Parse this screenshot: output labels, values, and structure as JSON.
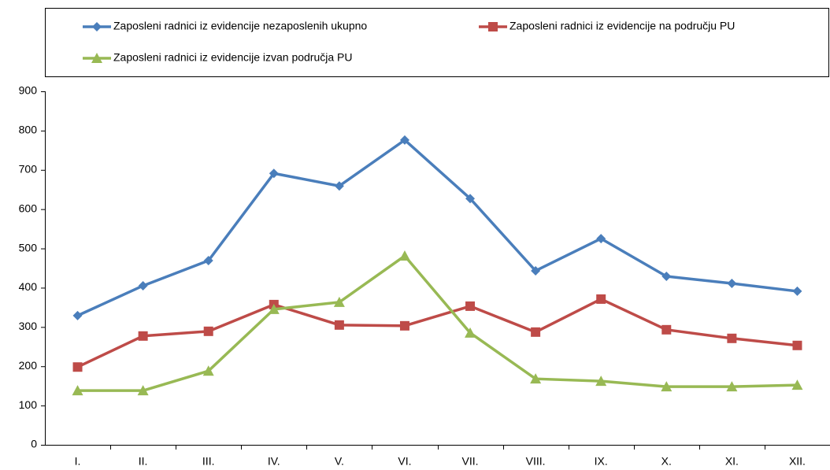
{
  "chart_data": {
    "type": "line",
    "categories": [
      "I.",
      "II.",
      "III.",
      "IV.",
      "V.",
      "VI.",
      "VII.",
      "VIII.",
      "IX.",
      "X.",
      "XI.",
      "XII."
    ],
    "series": [
      {
        "name": "Zaposleni radnici iz evidencije nezaposlenih ukupno",
        "color": "#4a7ebb",
        "marker": "diamond",
        "values": [
          329,
          405,
          469,
          691,
          659,
          776,
          627,
          443,
          525,
          429,
          411,
          391
        ]
      },
      {
        "name": "Zaposleni radnici iz evidencije na području PU",
        "color": "#be4b48",
        "marker": "square",
        "values": [
          198,
          277,
          289,
          357,
          305,
          303,
          353,
          287,
          371,
          293,
          271,
          253
        ]
      },
      {
        "name": "Zaposleni radnici iz evidencije izvan područja PU",
        "color": "#98b954",
        "marker": "triangle",
        "values": [
          138,
          138,
          188,
          345,
          363,
          481,
          285,
          168,
          162,
          148,
          148,
          152
        ]
      }
    ],
    "ylim": [
      0,
      900
    ],
    "yticks": [
      0,
      100,
      200,
      300,
      400,
      500,
      600,
      700,
      800,
      900
    ],
    "grid": false
  }
}
